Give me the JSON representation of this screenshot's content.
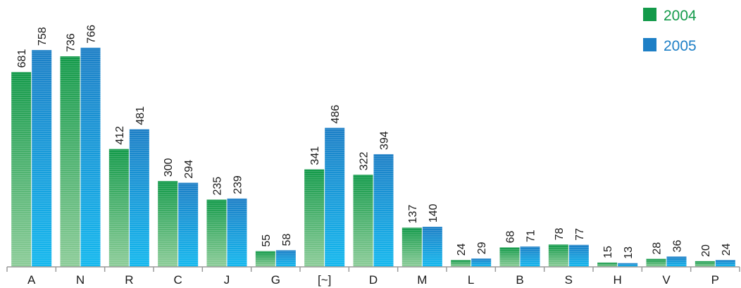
{
  "chart_data": {
    "type": "bar",
    "categories": [
      "A",
      "N",
      "R",
      "C",
      "J",
      "G",
      "[~]",
      "D",
      "M",
      "L",
      "B",
      "S",
      "H",
      "V",
      "P"
    ],
    "series": [
      {
        "name": "2004",
        "color": "#139a4a",
        "color_light": "#8ccc98",
        "values": [
          681,
          736,
          412,
          300,
          235,
          55,
          341,
          322,
          137,
          24,
          68,
          78,
          15,
          28,
          20
        ]
      },
      {
        "name": "2005",
        "color": "#1d7fc6",
        "color_light": "#14b8ee",
        "values": [
          758,
          766,
          481,
          294,
          239,
          58,
          486,
          394,
          140,
          29,
          71,
          77,
          13,
          36,
          24
        ]
      }
    ],
    "title": "",
    "xlabel": "",
    "ylabel": "",
    "ylim": [
      0,
      800
    ],
    "grid": false,
    "legend_position": "top-right",
    "data_labels": true
  }
}
